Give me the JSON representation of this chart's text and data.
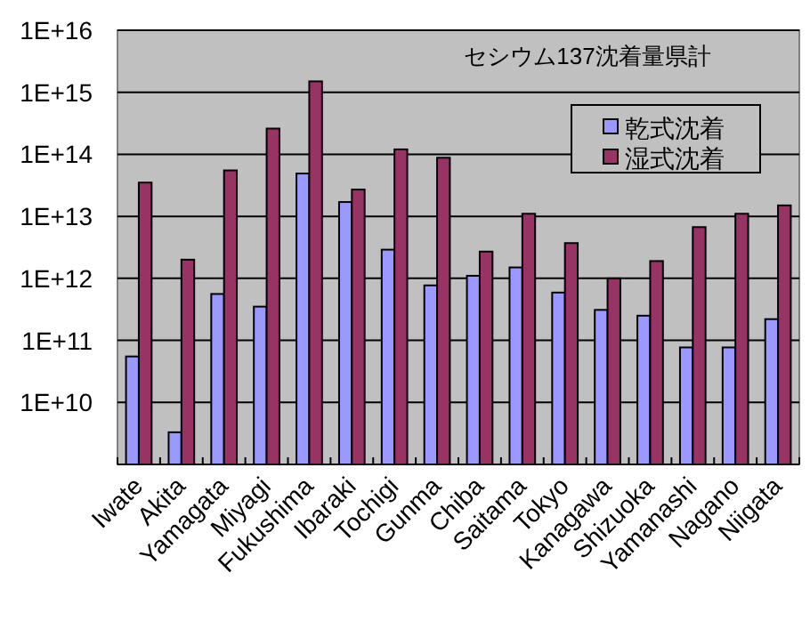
{
  "chart_data": {
    "type": "bar",
    "title": "セシウム137沈着量県計",
    "categories": [
      "Iwate",
      "Akita",
      "Yamagata",
      "Miyagi",
      "Fukushima",
      "Ibaraki",
      "Tochigi",
      "Gunma",
      "Chiba",
      "Saitama",
      "Tokyo",
      "Kanagawa",
      "Shizuoka",
      "Yamanashi",
      "Nagano",
      "Niigata"
    ],
    "series": [
      {
        "name": "乾式沈着",
        "color": "#9999ff",
        "values": [
          55000000000.0,
          3300000000.0,
          560000000000.0,
          350000000000.0,
          49000000000000.0,
          17000000000000.0,
          2900000000000.0,
          770000000000.0,
          1100000000000.0,
          1500000000000.0,
          590000000000.0,
          310000000000.0,
          250000000000.0,
          77000000000.0,
          77000000000.0,
          220000000000.0
        ]
      },
      {
        "name": "湿式沈着",
        "color": "#993366",
        "values": [
          35000000000000.0,
          2000000000000.0,
          55000000000000.0,
          260000000000000.0,
          1500000000000000.0,
          27000000000000.0,
          120000000000000.0,
          88000000000000.0,
          2700000000000.0,
          11000000000000.0,
          3700000000000.0,
          1000000000000.0,
          1900000000000.0,
          6700000000000.0,
          11000000000000.0,
          15000000000000.0
        ]
      }
    ],
    "log": true,
    "ylim": [
      1000000000.0,
      1e+16
    ],
    "yticks": [
      {
        "value": 10000000000.0,
        "label": "1E+10"
      },
      {
        "value": 100000000000.0,
        "label": "1E+11"
      },
      {
        "value": 1000000000000.0,
        "label": "1E+12"
      },
      {
        "value": 10000000000000.0,
        "label": "1E+13"
      },
      {
        "value": 100000000000000.0,
        "label": "1E+14"
      },
      {
        "value": 1000000000000000.0,
        "label": "1E+15"
      },
      {
        "value": 1e+16,
        "label": "1E+16"
      }
    ],
    "grid": "y",
    "legend": "top right"
  }
}
